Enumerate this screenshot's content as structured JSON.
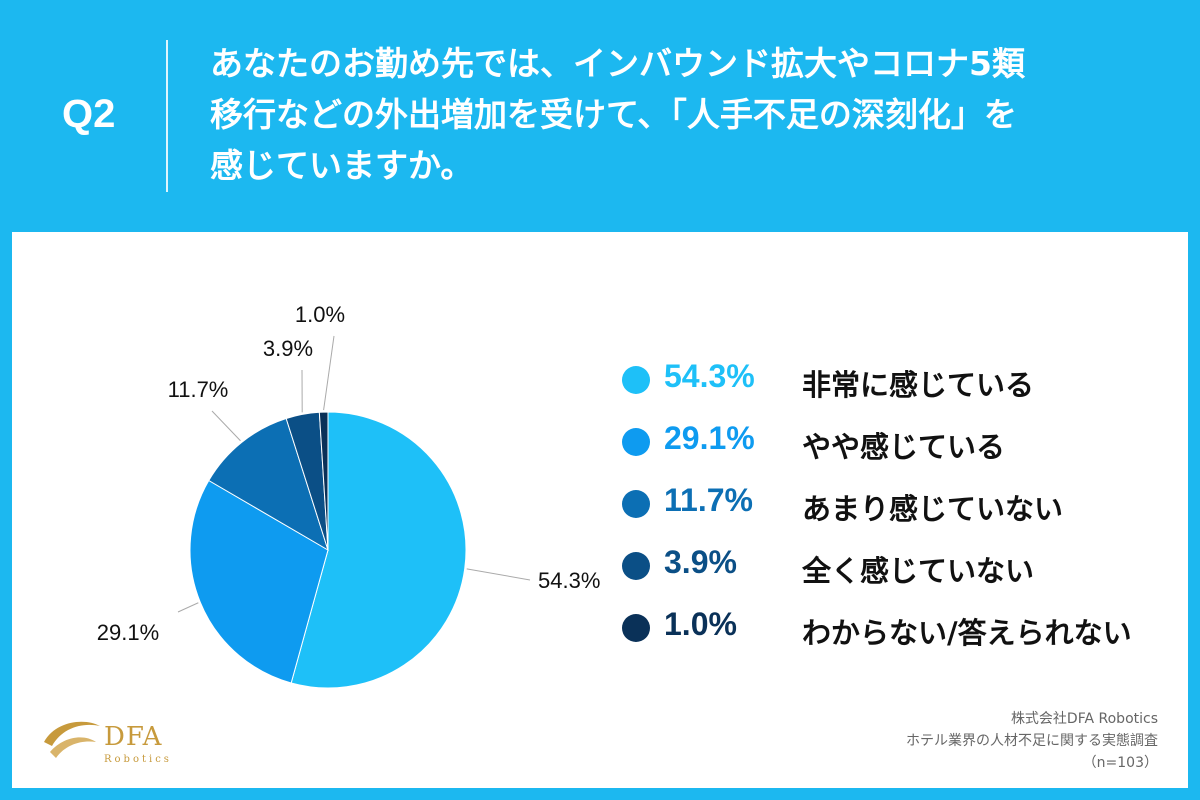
{
  "header": {
    "q_label": "Q2",
    "question_lines": [
      "あなたのお勤め先では、インバウンド拡大やコロナ5類",
      "移行などの外出増加を受けて、「人手不足の深刻化」を",
      "感じていますか。"
    ]
  },
  "chart_data": {
    "type": "pie",
    "unit": "%",
    "slices": [
      {
        "label": "非常に感じている",
        "value": 54.3,
        "value_label": "54.3%",
        "color": "#1ec0f8"
      },
      {
        "label": "やや感じている",
        "value": 29.1,
        "value_label": "29.1%",
        "color": "#0e9bf0"
      },
      {
        "label": "あまり感じていない",
        "value": 11.7,
        "value_label": "11.7%",
        "color": "#0c6fb4"
      },
      {
        "label": "全く感じていない",
        "value": 3.9,
        "value_label": "3.9%",
        "color": "#0b4f86"
      },
      {
        "label": "わからない/答えられない",
        "value": 1.0,
        "value_label": "1.0%",
        "color": "#0a3158"
      }
    ],
    "legend_position": "right"
  },
  "branding": {
    "logo_text": "DFA",
    "logo_sub": "Robotics",
    "logo_color": "#c79a3c"
  },
  "source": {
    "company": "株式会社DFA Robotics",
    "survey": "ホテル業界の人材不足に関する実態調査",
    "sample": "（n=103）"
  }
}
